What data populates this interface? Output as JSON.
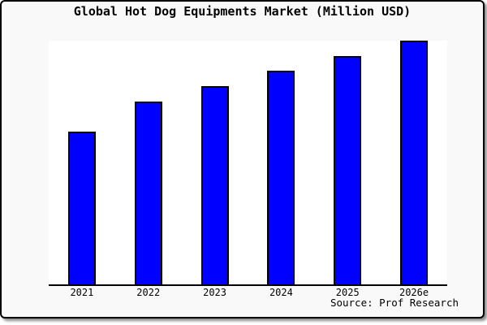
{
  "chart_data": {
    "type": "bar",
    "title": "Global Hot Dog Equipments Market (Million USD)",
    "categories": [
      "2021",
      "2022",
      "2023",
      "2024",
      "2025",
      "2026e"
    ],
    "values": [
      62.8,
      75.1,
      81.4,
      87.7,
      93.7,
      100
    ],
    "values_note": "No y-axis shown; values estimated as percent of tallest bar (2026e = 100)",
    "xlabel": "",
    "ylabel": "",
    "ylim": [
      0,
      100
    ],
    "grid": false,
    "legend": false,
    "source_note": "Source: Prof Research",
    "colors": {
      "bar_fill": "#0000ff",
      "bar_border": "#000000",
      "axis_line": "#000000",
      "plot_background": "#ffffff",
      "card_background": "#f9f9f9",
      "frame_border": "#000000",
      "text": "#000000"
    }
  }
}
